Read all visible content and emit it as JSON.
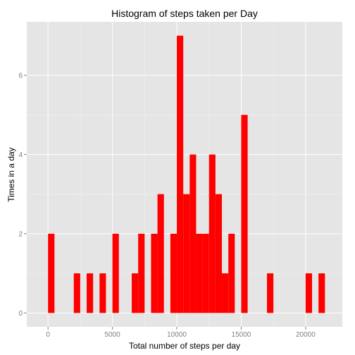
{
  "chart_data": {
    "type": "bar",
    "title": "Histogram of steps taken per Day",
    "xlabel": "Total number of steps per day",
    "ylabel": "Times in a day",
    "xlim": [
      -1650,
      22850
    ],
    "ylim": [
      -0.35,
      7.35
    ],
    "x_ticks": [
      0,
      5000,
      10000,
      15000,
      20000
    ],
    "y_ticks": [
      0,
      2,
      4,
      6
    ],
    "x_tick_labels": [
      "0",
      "5000",
      "10000",
      "15000",
      "20000"
    ],
    "y_tick_labels": [
      "0",
      "2",
      "4",
      "6"
    ],
    "bin_width": 500,
    "grid": true,
    "bar_color": "#ff0000",
    "panel_color": "#e5e5e5",
    "grid_color": "#ffffff",
    "bins": [
      {
        "x": 0,
        "count": 2
      },
      {
        "x": 2000,
        "count": 1
      },
      {
        "x": 3000,
        "count": 1
      },
      {
        "x": 4000,
        "count": 1
      },
      {
        "x": 5000,
        "count": 2
      },
      {
        "x": 6500,
        "count": 1
      },
      {
        "x": 7000,
        "count": 2
      },
      {
        "x": 8000,
        "count": 2
      },
      {
        "x": 8500,
        "count": 3
      },
      {
        "x": 9500,
        "count": 2
      },
      {
        "x": 10000,
        "count": 7
      },
      {
        "x": 10500,
        "count": 3
      },
      {
        "x": 11000,
        "count": 4
      },
      {
        "x": 11500,
        "count": 2
      },
      {
        "x": 12000,
        "count": 2
      },
      {
        "x": 12500,
        "count": 4
      },
      {
        "x": 13000,
        "count": 3
      },
      {
        "x": 13500,
        "count": 1
      },
      {
        "x": 14000,
        "count": 2
      },
      {
        "x": 15000,
        "count": 5
      },
      {
        "x": 17000,
        "count": 1
      },
      {
        "x": 20000,
        "count": 1
      },
      {
        "x": 21000,
        "count": 1
      }
    ]
  }
}
